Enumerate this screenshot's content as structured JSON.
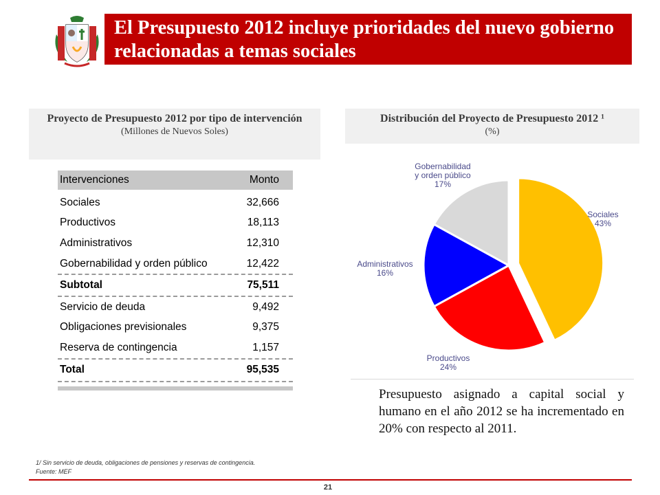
{
  "slide": {
    "title": "El Presupuesto 2012 incluye prioridades del nuevo gobierno relacionadas a temas sociales",
    "page_number": "21"
  },
  "left_panel": {
    "heading": "Proyecto de Presupuesto 2012 por tipo de intervención",
    "subheading": "(Millones de Nuevos Soles)"
  },
  "table": {
    "headers": [
      "Intervenciones",
      "Monto"
    ],
    "rows": [
      {
        "label": "Sociales",
        "value": "32,666"
      },
      {
        "label": "Productivos",
        "value": "18,113"
      },
      {
        "label": "Administrativos",
        "value": "12,310"
      },
      {
        "label": "Gobernabilidad y orden público",
        "value": "12,422"
      },
      {
        "label": "Subtotal",
        "value": "75,511"
      },
      {
        "label": "Servicio de deuda",
        "value": "9,492"
      },
      {
        "label": "Obligaciones previsionales",
        "value": "9,375"
      },
      {
        "label": "Reserva de contingencia",
        "value": "1,157"
      },
      {
        "label": "Total",
        "value": "95,535"
      }
    ]
  },
  "right_panel": {
    "heading": "Distribución del Proyecto de Presupuesto 2012 ¹",
    "subheading": "(%)"
  },
  "chart_data": {
    "type": "pie",
    "title": "Distribución del Proyecto de Presupuesto 2012 ¹",
    "subtitle": "(%)",
    "slices": [
      {
        "name": "Sociales",
        "value": 43,
        "label": "43%",
        "color": "#ffc000",
        "exploded": true
      },
      {
        "name": "Productivos",
        "value": 24,
        "label": "24%",
        "color": "#ff0000",
        "exploded": false
      },
      {
        "name": "Administrativos",
        "value": 16,
        "label": "16%",
        "color": "#0000ff",
        "exploded": false
      },
      {
        "name": "Gobernabilidad y orden público",
        "value": 17,
        "label": "17%",
        "color": "#d9d9d9",
        "exploded": false
      }
    ],
    "start_angle_deg": 0,
    "direction": "clockwise",
    "label_color": "#4a4a8a"
  },
  "summary_text": "Presupuesto asignado a capital social y humano en el año 2012 se ha incrementado en 20% con respecto al 2011.",
  "footnotes": {
    "note": "1/ Sin servicio de deuda, obligaciones de pensiones y reservas de contingencia.",
    "source": "Fuente: MEF"
  },
  "colors": {
    "title_bar": "#c00000",
    "header_gray": "#c7c7c7",
    "panel_gray": "#f0f0f0"
  }
}
